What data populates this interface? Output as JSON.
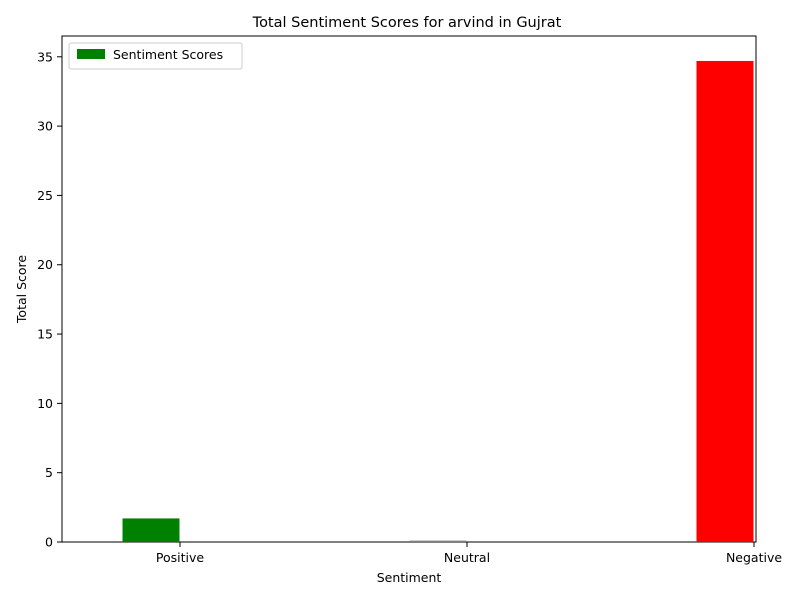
{
  "chart_data": {
    "type": "bar",
    "title": "Total Sentiment Scores for arvind in Gujrat",
    "xlabel": "Sentiment",
    "ylabel": "Total Score",
    "categories": [
      "Positive",
      "Neutral",
      "Negative"
    ],
    "series": [
      {
        "name": "Sentiment Scores",
        "values": [
          1.7,
          0.1,
          34.7
        ],
        "colors": [
          "#008000",
          "#808080",
          "#ff0000"
        ]
      }
    ],
    "ylim": [
      0,
      36.5
    ],
    "yticks": [
      0,
      5,
      10,
      15,
      20,
      25,
      30,
      35
    ],
    "grid": false,
    "legend_position": "upper-left"
  }
}
